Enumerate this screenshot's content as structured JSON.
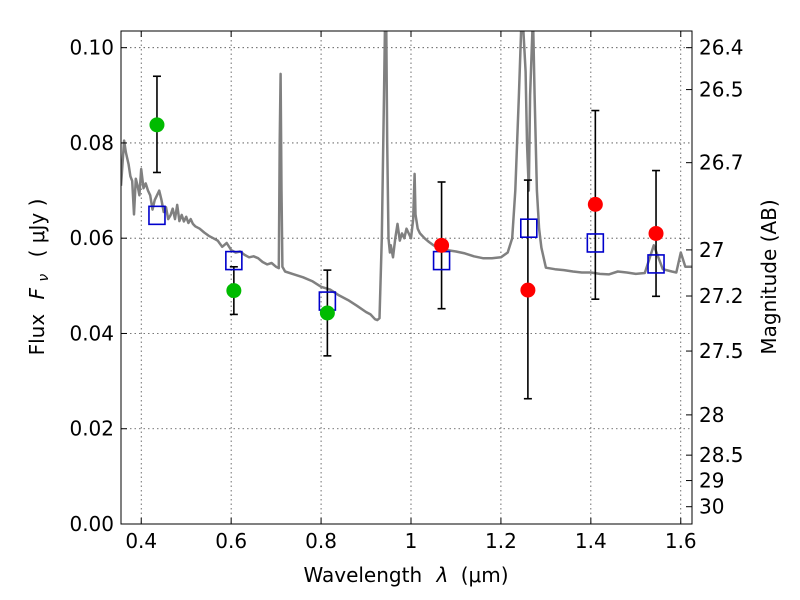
{
  "chart_data": {
    "type": "scatter",
    "xlabel_main": "Wavelength",
    "xlabel_sym": "λ",
    "xlabel_unit": "(μm)",
    "ylabel_main": "Flux",
    "ylabel_sym": "F",
    "ylabel_sub": "ν",
    "ylabel_unit": "( μJy )",
    "y2label": "Magnitude (AB)",
    "xlim": [
      0.355,
      1.625
    ],
    "ylim": [
      0.0,
      0.1035
    ],
    "x_ticks": [
      0.4,
      0.6,
      0.8,
      1.0,
      1.2,
      1.4,
      1.6
    ],
    "x_tick_labels": [
      "0.4",
      "0.6",
      "0.8",
      "1",
      "1.2",
      "1.4",
      "1.6"
    ],
    "y_ticks": [
      0.0,
      0.02,
      0.04,
      0.06,
      0.08,
      0.1
    ],
    "y_tick_labels": [
      "0.00",
      "0.02",
      "0.04",
      "0.06",
      "0.08",
      "0.10"
    ],
    "mag_ticks": [
      26.4,
      26.5,
      26.7,
      27,
      27.2,
      27.5,
      28,
      28.5,
      29,
      30
    ],
    "mag_tick_labels": [
      "26.4",
      "26.5",
      "26.7",
      "27",
      "27.2",
      "27.5",
      "28",
      "28.5",
      "29",
      "30"
    ],
    "grid": true,
    "colors": {
      "spectrum": "#808080",
      "model": "#0000cc",
      "optical": "#00bb00",
      "nir": "#ff0000",
      "errorbar": "#000000"
    },
    "series": [
      {
        "name": "optical-photometry",
        "marker": "circle",
        "points": [
          {
            "x": 0.435,
            "y": 0.0838,
            "yerr_low": 0.0738,
            "yerr_high": 0.094
          },
          {
            "x": 0.606,
            "y": 0.049,
            "yerr_low": 0.044,
            "yerr_high": 0.054
          },
          {
            "x": 0.814,
            "y": 0.0443,
            "yerr_low": 0.0353,
            "yerr_high": 0.0533
          }
        ]
      },
      {
        "name": "nir-photometry",
        "marker": "circle",
        "points": [
          {
            "x": 1.068,
            "y": 0.0585,
            "yerr_low": 0.0452,
            "yerr_high": 0.0718
          },
          {
            "x": 1.26,
            "y": 0.0491,
            "yerr_low": 0.0263,
            "yerr_high": 0.0722
          },
          {
            "x": 1.41,
            "y": 0.0671,
            "yerr_low": 0.0472,
            "yerr_high": 0.0868
          },
          {
            "x": 1.545,
            "y": 0.061,
            "yerr_low": 0.0478,
            "yerr_high": 0.0742
          }
        ]
      },
      {
        "name": "model-photometry",
        "marker": "square",
        "points": [
          {
            "x": 0.435,
            "y": 0.0648
          },
          {
            "x": 0.606,
            "y": 0.0553
          },
          {
            "x": 0.814,
            "y": 0.0468
          },
          {
            "x": 1.068,
            "y": 0.0553
          },
          {
            "x": 1.262,
            "y": 0.0621
          },
          {
            "x": 1.41,
            "y": 0.059
          },
          {
            "x": 1.545,
            "y": 0.0546
          }
        ]
      },
      {
        "name": "model-spectrum",
        "type": "line",
        "x": [
          0.355,
          0.362,
          0.366,
          0.372,
          0.376,
          0.38,
          0.384,
          0.388,
          0.392,
          0.396,
          0.4,
          0.405,
          0.41,
          0.415,
          0.42,
          0.425,
          0.43,
          0.435,
          0.44,
          0.445,
          0.45,
          0.455,
          0.46,
          0.465,
          0.47,
          0.475,
          0.48,
          0.485,
          0.49,
          0.495,
          0.5,
          0.505,
          0.51,
          0.515,
          0.52,
          0.53,
          0.54,
          0.55,
          0.56,
          0.57,
          0.58,
          0.59,
          0.6,
          0.61,
          0.62,
          0.63,
          0.64,
          0.65,
          0.66,
          0.67,
          0.68,
          0.69,
          0.7,
          0.706,
          0.708,
          0.71,
          0.712,
          0.714,
          0.72,
          0.74,
          0.76,
          0.78,
          0.8,
          0.82,
          0.84,
          0.86,
          0.88,
          0.9,
          0.91,
          0.92,
          0.925,
          0.93,
          0.935,
          0.94,
          0.942,
          0.945,
          0.947,
          0.95,
          0.953,
          0.955,
          0.96,
          0.965,
          0.97,
          0.975,
          0.98,
          0.985,
          0.99,
          0.995,
          1.0,
          1.005,
          1.008,
          1.01,
          1.015,
          1.02,
          1.03,
          1.04,
          1.05,
          1.06,
          1.08,
          1.1,
          1.12,
          1.14,
          1.16,
          1.18,
          1.2,
          1.215,
          1.225,
          1.232,
          1.24,
          1.245,
          1.25,
          1.255,
          1.258,
          1.262,
          1.265,
          1.27,
          1.272,
          1.275,
          1.28,
          1.285,
          1.29,
          1.3,
          1.32,
          1.34,
          1.36,
          1.38,
          1.4,
          1.42,
          1.44,
          1.46,
          1.48,
          1.5,
          1.52,
          1.54,
          1.56,
          1.58,
          1.59,
          1.6,
          1.61,
          1.625
        ],
        "y": [
          0.071,
          0.0805,
          0.078,
          0.0755,
          0.073,
          0.072,
          0.065,
          0.0725,
          0.071,
          0.069,
          0.0745,
          0.0705,
          0.0715,
          0.07,
          0.069,
          0.066,
          0.068,
          0.069,
          0.07,
          0.068,
          0.0655,
          0.0665,
          0.064,
          0.0648,
          0.0662,
          0.064,
          0.067,
          0.0636,
          0.0649,
          0.0635,
          0.0645,
          0.0632,
          0.064,
          0.063,
          0.0625,
          0.062,
          0.0612,
          0.0605,
          0.06,
          0.0595,
          0.0582,
          0.059,
          0.0575,
          0.057,
          0.0572,
          0.0565,
          0.056,
          0.0562,
          0.0558,
          0.055,
          0.0545,
          0.0548,
          0.054,
          0.0537,
          0.08,
          0.0945,
          0.07,
          0.054,
          0.053,
          0.0524,
          0.0518,
          0.051,
          0.0498,
          0.0492,
          0.048,
          0.047,
          0.0458,
          0.0445,
          0.044,
          0.043,
          0.0428,
          0.0432,
          0.06,
          0.09,
          0.1035,
          0.1035,
          0.08,
          0.06,
          0.057,
          0.0585,
          0.056,
          0.06,
          0.063,
          0.0595,
          0.061,
          0.06,
          0.062,
          0.061,
          0.06,
          0.064,
          0.0735,
          0.065,
          0.062,
          0.061,
          0.06,
          0.0592,
          0.0585,
          0.058,
          0.0575,
          0.0572,
          0.0568,
          0.0562,
          0.0558,
          0.0558,
          0.056,
          0.057,
          0.06,
          0.07,
          0.09,
          0.1035,
          0.1035,
          0.095,
          0.08,
          0.07,
          0.09,
          0.1035,
          0.1035,
          0.09,
          0.07,
          0.062,
          0.058,
          0.0538,
          0.0535,
          0.0533,
          0.053,
          0.0528,
          0.0528,
          0.0525,
          0.0524,
          0.053,
          0.0528,
          0.0525,
          0.0527,
          0.0585,
          0.0535,
          0.053,
          0.0528,
          0.057,
          0.054,
          0.054
        ]
      }
    ]
  }
}
